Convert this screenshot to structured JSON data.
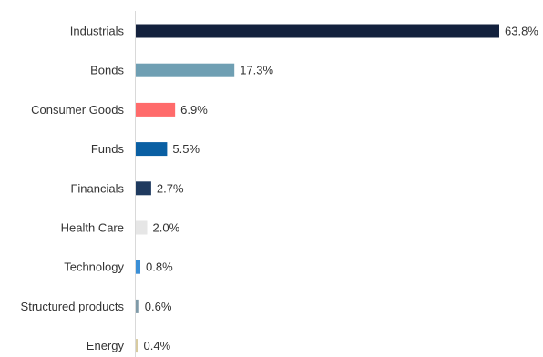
{
  "chart_data": {
    "type": "bar",
    "orientation": "horizontal",
    "categories": [
      "Industrials",
      "Bonds",
      "Consumer Goods",
      "Funds",
      "Financials",
      "Health Care",
      "Technology",
      "Structured products",
      "Energy"
    ],
    "values": [
      63.8,
      17.3,
      6.9,
      5.5,
      2.7,
      2.0,
      0.8,
      0.6,
      0.4
    ],
    "value_labels": [
      "63.8%",
      "17.3%",
      "6.9%",
      "5.5%",
      "2.7%",
      "2.0%",
      "0.8%",
      "0.6%",
      "0.4%"
    ],
    "colors": [
      "#13213d",
      "#6f9fb3",
      "#ff6b6b",
      "#0a5fa3",
      "#1f3a5f",
      "#e6e6e6",
      "#3a8fd6",
      "#7f9aa8",
      "#d8cba0"
    ],
    "title": "",
    "xlabel": "",
    "ylabel": "",
    "xlim": [
      0,
      63.8
    ],
    "grid": false,
    "legend": "none"
  }
}
